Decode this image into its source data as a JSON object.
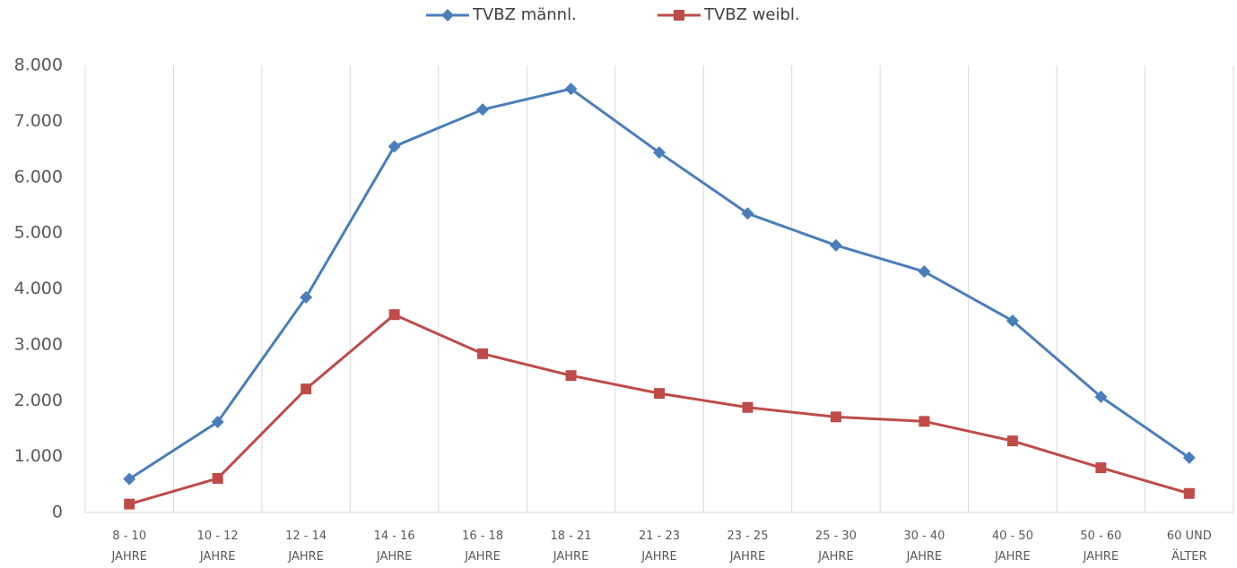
{
  "chart_data": {
    "type": "line",
    "categories": [
      "8 - 10 JAHRE",
      "10 - 12 JAHRE",
      "12 - 14 JAHRE",
      "14 - 16 JAHRE",
      "16 - 18 JAHRE",
      "18 - 21 JAHRE",
      "21 - 23 JAHRE",
      "23 - 25 JAHRE",
      "25 - 30 JAHRE",
      "30 - 40 JAHRE",
      "40 - 50 JAHRE",
      "50 - 60 JAHRE",
      "60 UND ÄLTER"
    ],
    "series": [
      {
        "name": "TVBZ männl.",
        "color": "#4a7ebb",
        "marker": "diamond",
        "values": [
          600,
          1620,
          3850,
          6550,
          7210,
          7580,
          6440,
          5350,
          4780,
          4310,
          3430,
          2070,
          980
        ]
      },
      {
        "name": "TVBZ weibl.",
        "color": "#be4b48",
        "marker": "square",
        "values": [
          150,
          610,
          2210,
          3540,
          2840,
          2450,
          2130,
          1880,
          1710,
          1630,
          1280,
          800,
          340
        ]
      }
    ],
    "ylim": [
      0,
      8000
    ],
    "yticks": [
      0,
      {
        "value": 1000,
        "label": "1.000"
      },
      {
        "value": 2000,
        "label": "2.000"
      },
      {
        "value": 3000,
        "label": "3.000"
      },
      {
        "value": 4000,
        "label": "4.000"
      },
      {
        "value": 5000,
        "label": "5.000"
      },
      {
        "value": 6000,
        "label": "6.000"
      },
      {
        "value": 7000,
        "label": "7.000"
      },
      {
        "value": 8000,
        "label": "8.000"
      }
    ],
    "grid": "x",
    "legend": "top"
  }
}
